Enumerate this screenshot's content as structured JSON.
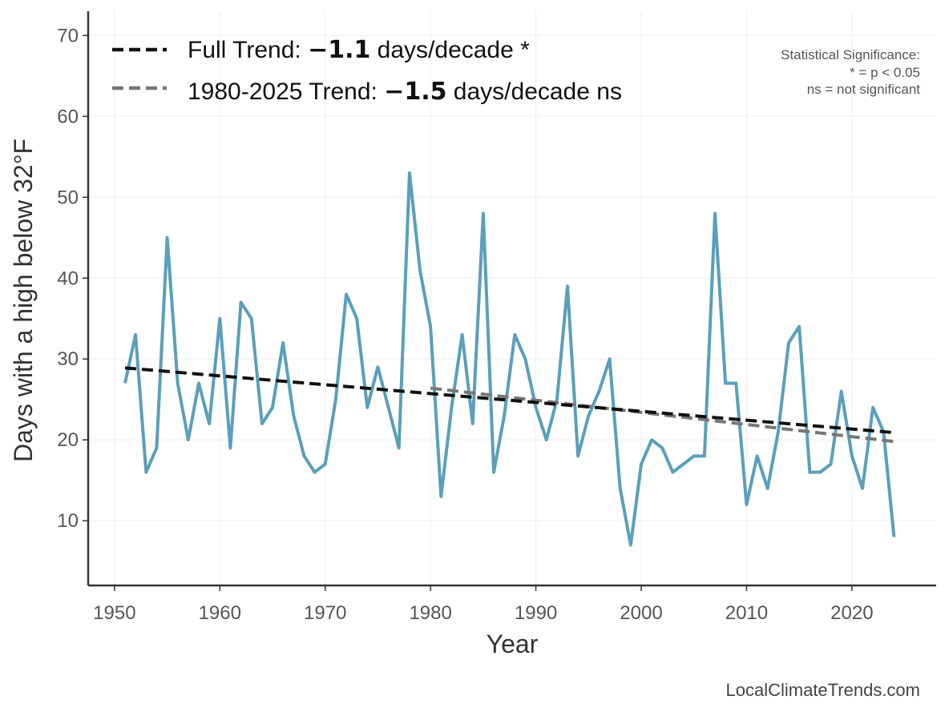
{
  "chart_data": {
    "type": "line",
    "xlabel": "Year",
    "ylabel": "Days with a high below 32°F",
    "xlim": [
      1947.5,
      2028
    ],
    "ylim": [
      2,
      73
    ],
    "x_ticks": [
      1950,
      1960,
      1970,
      1980,
      1990,
      2000,
      2010,
      2020
    ],
    "y_ticks": [
      10,
      20,
      30,
      40,
      50,
      60,
      70
    ],
    "grid": true,
    "series": [
      {
        "name": "Days with a high below 32°F",
        "color": "#5a9fbc",
        "x": [
          1951,
          1952,
          1953,
          1954,
          1955,
          1956,
          1957,
          1958,
          1959,
          1960,
          1961,
          1962,
          1963,
          1964,
          1965,
          1966,
          1967,
          1968,
          1969,
          1970,
          1971,
          1972,
          1973,
          1974,
          1975,
          1976,
          1977,
          1978,
          1979,
          1980,
          1981,
          1982,
          1983,
          1984,
          1985,
          1986,
          1987,
          1988,
          1989,
          1990,
          1991,
          1992,
          1993,
          1994,
          1995,
          1996,
          1997,
          1998,
          1999,
          2000,
          2001,
          2002,
          2003,
          2004,
          2005,
          2006,
          2007,
          2008,
          2009,
          2010,
          2011,
          2012,
          2013,
          2014,
          2015,
          2016,
          2017,
          2018,
          2019,
          2020,
          2021,
          2022,
          2023,
          2024
        ],
        "values": [
          27,
          33,
          16,
          19,
          45,
          27,
          20,
          27,
          22,
          35,
          19,
          37,
          35,
          22,
          24,
          32,
          23,
          18,
          16,
          17,
          25,
          38,
          35,
          24,
          29,
          24,
          19,
          53,
          41,
          34,
          13,
          24,
          33,
          22,
          48,
          16,
          23,
          33,
          30,
          24,
          20,
          25,
          39,
          18,
          23,
          26,
          30,
          14,
          7,
          17,
          20,
          19,
          16,
          17,
          18,
          18,
          48,
          27,
          27,
          12,
          18,
          14,
          21,
          32,
          34,
          16,
          16,
          17,
          26,
          18,
          14,
          24,
          21,
          8
        ]
      }
    ],
    "trends": [
      {
        "name": "Full Trend",
        "color": "#111111",
        "x": [
          1951,
          2024
        ],
        "values": [
          28.9,
          20.9
        ],
        "legend_prefix": "Full Trend: ",
        "legend_value": "−1.1",
        "legend_suffix": " days/decade *"
      },
      {
        "name": "1980-2025 Trend",
        "color": "#777777",
        "x": [
          1980,
          2024
        ],
        "values": [
          26.4,
          19.8
        ],
        "legend_prefix": "1980-2025 Trend: ",
        "legend_value": "−1.5",
        "legend_suffix": " days/decade ns"
      }
    ],
    "significance": {
      "title": "Statistical Significance:",
      "line1": "* = p < 0.05",
      "line2": "ns = not significant"
    },
    "credit": "LocalClimateTrends.com"
  }
}
